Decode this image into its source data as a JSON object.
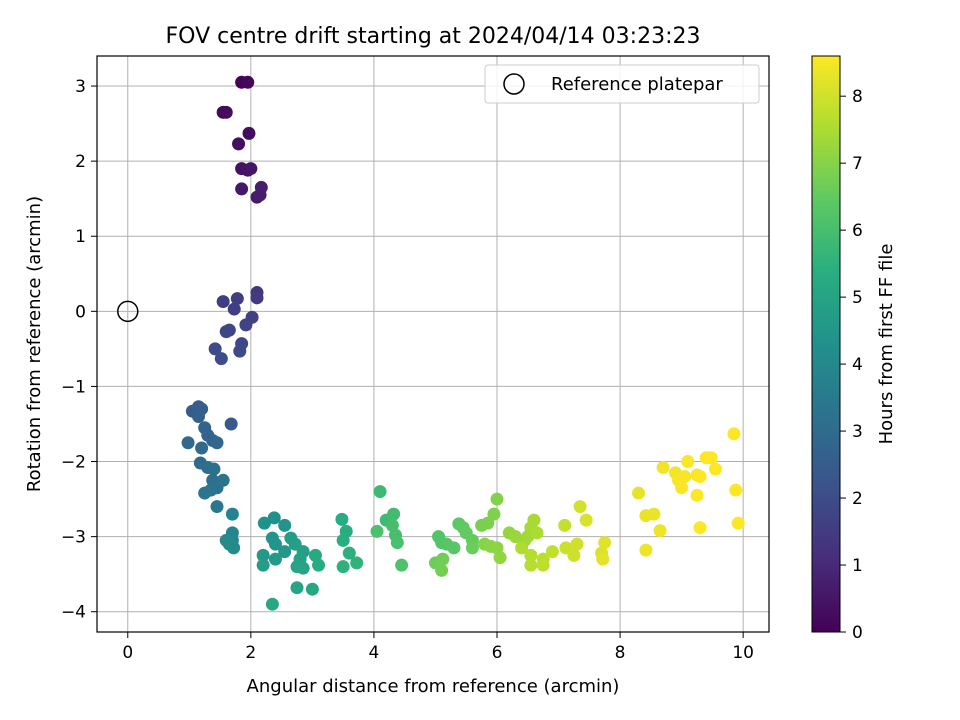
{
  "chart_data": {
    "type": "scatter",
    "title": "FOV centre drift starting at 2024/04/14 03:23:23",
    "xlabel": "Angular distance from reference (arcmin)",
    "ylabel": "Rotation from reference (arcmin)",
    "xlim": [
      -0.5,
      10.42
    ],
    "ylim": [
      -4.27,
      3.4
    ],
    "xticks": [
      0,
      2,
      4,
      6,
      8,
      10
    ],
    "yticks": [
      -4,
      -3,
      -2,
      -1,
      0,
      1,
      2,
      3
    ],
    "grid": true,
    "legend": {
      "location": "top-right",
      "entries": [
        "Reference platepar"
      ]
    },
    "reference_point": {
      "x": 0,
      "y": 0
    },
    "colorbar": {
      "label": "Hours from first FF file",
      "colormap": "viridis",
      "range": [
        0,
        8.6
      ],
      "ticks": [
        0,
        1,
        2,
        3,
        4,
        5,
        6,
        7,
        8
      ]
    },
    "points": [
      [
        1.85,
        3.05,
        0.1
      ],
      [
        1.95,
        3.05,
        0.15
      ],
      [
        1.55,
        2.65,
        0.2
      ],
      [
        1.6,
        2.65,
        0.25
      ],
      [
        1.97,
        2.37,
        0.3
      ],
      [
        1.8,
        2.23,
        0.35
      ],
      [
        1.85,
        1.9,
        0.4
      ],
      [
        1.95,
        1.88,
        0.45
      ],
      [
        2.0,
        1.9,
        0.5
      ],
      [
        1.85,
        1.63,
        0.55
      ],
      [
        2.1,
        1.52,
        0.6
      ],
      [
        2.15,
        1.55,
        0.65
      ],
      [
        2.17,
        1.65,
        0.7
      ],
      [
        2.1,
        0.25,
        1.4
      ],
      [
        2.1,
        0.18,
        1.45
      ],
      [
        1.78,
        0.17,
        1.5
      ],
      [
        1.55,
        0.13,
        1.55
      ],
      [
        1.73,
        0.03,
        1.6
      ],
      [
        2.02,
        -0.08,
        1.65
      ],
      [
        1.92,
        -0.18,
        1.7
      ],
      [
        1.65,
        -0.25,
        1.75
      ],
      [
        1.6,
        -0.27,
        1.8
      ],
      [
        1.85,
        -0.43,
        1.85
      ],
      [
        1.82,
        -0.53,
        1.9
      ],
      [
        1.42,
        -0.5,
        1.95
      ],
      [
        1.52,
        -0.63,
        2.0
      ],
      [
        1.68,
        -1.5,
        2.4
      ],
      [
        1.05,
        -1.33,
        2.5
      ],
      [
        1.15,
        -1.27,
        2.55
      ],
      [
        1.2,
        -1.3,
        2.6
      ],
      [
        1.15,
        -1.4,
        2.65
      ],
      [
        1.25,
        -1.55,
        2.7
      ],
      [
        1.3,
        -1.65,
        2.75
      ],
      [
        1.38,
        -1.72,
        2.8
      ],
      [
        1.45,
        -1.75,
        2.85
      ],
      [
        0.98,
        -1.75,
        2.9
      ],
      [
        1.2,
        -1.82,
        2.95
      ],
      [
        1.18,
        -2.02,
        3.0
      ],
      [
        1.3,
        -2.08,
        3.05
      ],
      [
        1.4,
        -2.1,
        3.1
      ],
      [
        1.38,
        -2.25,
        3.15
      ],
      [
        1.45,
        -2.35,
        3.2
      ],
      [
        1.55,
        -2.25,
        3.25
      ],
      [
        1.35,
        -2.38,
        3.3
      ],
      [
        1.25,
        -2.42,
        3.35
      ],
      [
        1.45,
        -2.6,
        3.4
      ],
      [
        1.7,
        -2.7,
        3.8
      ],
      [
        1.7,
        -2.95,
        3.9
      ],
      [
        1.7,
        -3.05,
        3.95
      ],
      [
        1.65,
        -3.1,
        4.0
      ],
      [
        1.6,
        -3.05,
        4.05
      ],
      [
        1.72,
        -3.15,
        4.1
      ],
      [
        2.22,
        -2.82,
        4.3
      ],
      [
        2.38,
        -2.75,
        4.35
      ],
      [
        2.55,
        -2.85,
        4.4
      ],
      [
        2.35,
        -3.02,
        4.45
      ],
      [
        2.4,
        -3.1,
        4.5
      ],
      [
        2.55,
        -3.2,
        4.55
      ],
      [
        2.2,
        -3.25,
        4.6
      ],
      [
        2.4,
        -3.3,
        4.65
      ],
      [
        2.2,
        -3.38,
        4.7
      ],
      [
        2.65,
        -3.02,
        4.75
      ],
      [
        2.72,
        -3.1,
        4.8
      ],
      [
        2.85,
        -3.2,
        4.85
      ],
      [
        2.8,
        -3.3,
        4.9
      ],
      [
        2.75,
        -3.4,
        4.95
      ],
      [
        2.85,
        -3.42,
        5.0
      ],
      [
        2.75,
        -3.68,
        5.05
      ],
      [
        3.0,
        -3.7,
        5.1
      ],
      [
        2.35,
        -3.9,
        5.15
      ],
      [
        3.05,
        -3.25,
        5.2
      ],
      [
        3.1,
        -3.38,
        5.25
      ],
      [
        3.48,
        -2.77,
        5.3
      ],
      [
        3.55,
        -2.93,
        5.35
      ],
      [
        3.5,
        -3.05,
        5.4
      ],
      [
        3.6,
        -3.22,
        5.45
      ],
      [
        3.5,
        -3.4,
        5.5
      ],
      [
        3.72,
        -3.35,
        5.55
      ],
      [
        4.1,
        -2.4,
        5.8
      ],
      [
        4.2,
        -2.78,
        5.85
      ],
      [
        4.32,
        -2.7,
        5.9
      ],
      [
        4.3,
        -2.85,
        5.95
      ],
      [
        4.35,
        -2.98,
        6.0
      ],
      [
        4.38,
        -3.08,
        6.05
      ],
      [
        4.05,
        -2.93,
        6.1
      ],
      [
        4.45,
        -3.38,
        6.15
      ],
      [
        5.05,
        -3.0,
        6.2
      ],
      [
        5.1,
        -3.08,
        6.25
      ],
      [
        5.18,
        -3.1,
        6.3
      ],
      [
        5.3,
        -3.15,
        6.35
      ],
      [
        5.38,
        -2.83,
        6.4
      ],
      [
        5.45,
        -2.88,
        6.45
      ],
      [
        5.5,
        -2.95,
        6.5
      ],
      [
        5.6,
        -3.05,
        6.55
      ],
      [
        5.6,
        -3.15,
        6.6
      ],
      [
        5.0,
        -3.35,
        6.65
      ],
      [
        5.12,
        -3.3,
        6.7
      ],
      [
        5.1,
        -3.45,
        6.75
      ],
      [
        5.75,
        -2.85,
        6.8
      ],
      [
        5.85,
        -2.82,
        6.85
      ],
      [
        5.95,
        -2.7,
        6.9
      ],
      [
        6.0,
        -2.5,
        6.95
      ],
      [
        5.8,
        -3.1,
        7.0
      ],
      [
        5.9,
        -3.13,
        7.05
      ],
      [
        6.0,
        -3.15,
        7.1
      ],
      [
        6.05,
        -3.28,
        7.15
      ],
      [
        6.2,
        -2.95,
        7.2
      ],
      [
        6.3,
        -3.0,
        7.25
      ],
      [
        6.45,
        -3.05,
        7.3
      ],
      [
        6.5,
        -3.0,
        7.35
      ],
      [
        6.55,
        -2.88,
        7.4
      ],
      [
        6.6,
        -2.78,
        7.45
      ],
      [
        6.65,
        -2.95,
        7.5
      ],
      [
        6.4,
        -3.15,
        7.55
      ],
      [
        6.55,
        -3.25,
        7.6
      ],
      [
        6.55,
        -3.38,
        7.65
      ],
      [
        6.75,
        -3.3,
        7.7
      ],
      [
        6.75,
        -3.38,
        7.75
      ],
      [
        6.9,
        -3.2,
        7.8
      ],
      [
        7.1,
        -2.85,
        7.85
      ],
      [
        7.12,
        -3.15,
        7.9
      ],
      [
        7.25,
        -3.25,
        7.95
      ],
      [
        7.3,
        -3.1,
        8.0
      ],
      [
        7.35,
        -2.6,
        8.05
      ],
      [
        7.45,
        -2.78,
        8.1
      ],
      [
        7.7,
        -3.22,
        8.15
      ],
      [
        7.75,
        -3.08,
        8.2
      ],
      [
        7.72,
        -3.3,
        8.25
      ],
      [
        8.3,
        -2.42,
        8.3
      ],
      [
        8.42,
        -2.72,
        8.35
      ],
      [
        8.55,
        -2.7,
        8.35
      ],
      [
        8.42,
        -3.18,
        8.4
      ],
      [
        8.65,
        -2.92,
        8.4
      ],
      [
        8.7,
        -2.08,
        8.45
      ],
      [
        8.9,
        -2.15,
        8.45
      ],
      [
        9.05,
        -2.2,
        8.5
      ],
      [
        8.95,
        -2.25,
        8.5
      ],
      [
        9.0,
        -2.35,
        8.55
      ],
      [
        9.1,
        -2.0,
        8.55
      ],
      [
        9.25,
        -2.18,
        8.55
      ],
      [
        9.3,
        -2.2,
        8.6
      ],
      [
        9.25,
        -2.45,
        8.6
      ],
      [
        9.3,
        -2.88,
        8.6
      ],
      [
        9.4,
        -1.95,
        8.6
      ],
      [
        9.48,
        -1.95,
        8.6
      ],
      [
        9.55,
        -2.1,
        8.6
      ],
      [
        9.85,
        -1.63,
        8.6
      ],
      [
        9.88,
        -2.38,
        8.6
      ],
      [
        9.92,
        -2.82,
        8.6
      ]
    ]
  }
}
